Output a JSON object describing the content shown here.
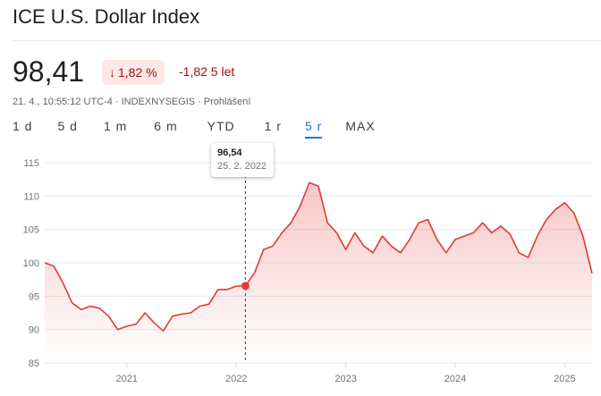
{
  "header": {
    "title": "ICE U.S. Dollar Index",
    "price": "98,41",
    "change_badge": "1,82 %",
    "change_abs": "-1,82 5 let",
    "meta": {
      "timestamp": "21. 4., 10:55:12 UTC-4",
      "exchange": "INDEXNYSEGIS",
      "disclaimer": "Prohlášení"
    }
  },
  "colors": {
    "line": "#e53935",
    "negative_text": "#a50e0e",
    "negative_bg": "#fce8e6",
    "active_tab": "#1a73e8"
  },
  "tabs": [
    {
      "label": "1 d",
      "active": false
    },
    {
      "label": "5 d",
      "active": false
    },
    {
      "label": "1 m",
      "active": false
    },
    {
      "label": "6 m",
      "active": false
    },
    {
      "label": "YTD",
      "active": false
    },
    {
      "label": "1 r",
      "active": false
    },
    {
      "label": "5 r",
      "active": true
    },
    {
      "label": "MAX",
      "active": false
    }
  ],
  "tooltip": {
    "value": "96,54",
    "date": "25. 2. 2022"
  },
  "chart_data": {
    "type": "area",
    "x_ticks": [
      "2021",
      "2022",
      "2023",
      "2024",
      "2025"
    ],
    "y_ticks": [
      "115",
      "110",
      "105",
      "100",
      "95",
      "90",
      "85"
    ],
    "ylim": [
      85,
      115
    ],
    "xlim": [
      "2020-04",
      "2025-04"
    ],
    "grid": true,
    "hover": {
      "x": "2022-02",
      "y": 96.54
    },
    "series": [
      {
        "x": [
          "2020-04",
          "2020-05",
          "2020-06",
          "2020-07",
          "2020-08",
          "2020-09",
          "2020-10",
          "2020-11",
          "2020-12",
          "2021-01",
          "2021-02",
          "2021-03",
          "2021-04",
          "2021-05",
          "2021-06",
          "2021-07",
          "2021-08",
          "2021-09",
          "2021-10",
          "2021-11",
          "2021-12",
          "2022-01",
          "2022-02",
          "2022-03",
          "2022-04",
          "2022-05",
          "2022-06",
          "2022-07",
          "2022-08",
          "2022-09",
          "2022-10",
          "2022-11",
          "2022-12",
          "2023-01",
          "2023-02",
          "2023-03",
          "2023-04",
          "2023-05",
          "2023-06",
          "2023-07",
          "2023-08",
          "2023-09",
          "2023-10",
          "2023-11",
          "2023-12",
          "2024-01",
          "2024-02",
          "2024-03",
          "2024-04",
          "2024-05",
          "2024-06",
          "2024-07",
          "2024-08",
          "2024-09",
          "2024-10",
          "2024-11",
          "2024-12",
          "2025-01",
          "2025-02",
          "2025-03",
          "2025-04"
        ],
        "values": [
          100.0,
          99.5,
          97.0,
          94.0,
          93.0,
          93.5,
          93.2,
          92.0,
          90.0,
          90.5,
          90.8,
          92.5,
          91.0,
          89.8,
          92.0,
          92.3,
          92.5,
          93.5,
          93.8,
          96.0,
          96.0,
          96.5,
          96.54,
          98.5,
          102.0,
          102.5,
          104.5,
          106.0,
          108.5,
          112.0,
          111.5,
          106.0,
          104.5,
          102.0,
          104.5,
          102.5,
          101.5,
          104.0,
          102.5,
          101.5,
          103.5,
          106.0,
          106.5,
          103.5,
          101.5,
          103.5,
          104.0,
          104.5,
          106.0,
          104.5,
          105.5,
          104.3,
          101.5,
          100.8,
          104.0,
          106.5,
          108.0,
          109.0,
          107.5,
          104.0,
          98.41
        ]
      }
    ]
  }
}
